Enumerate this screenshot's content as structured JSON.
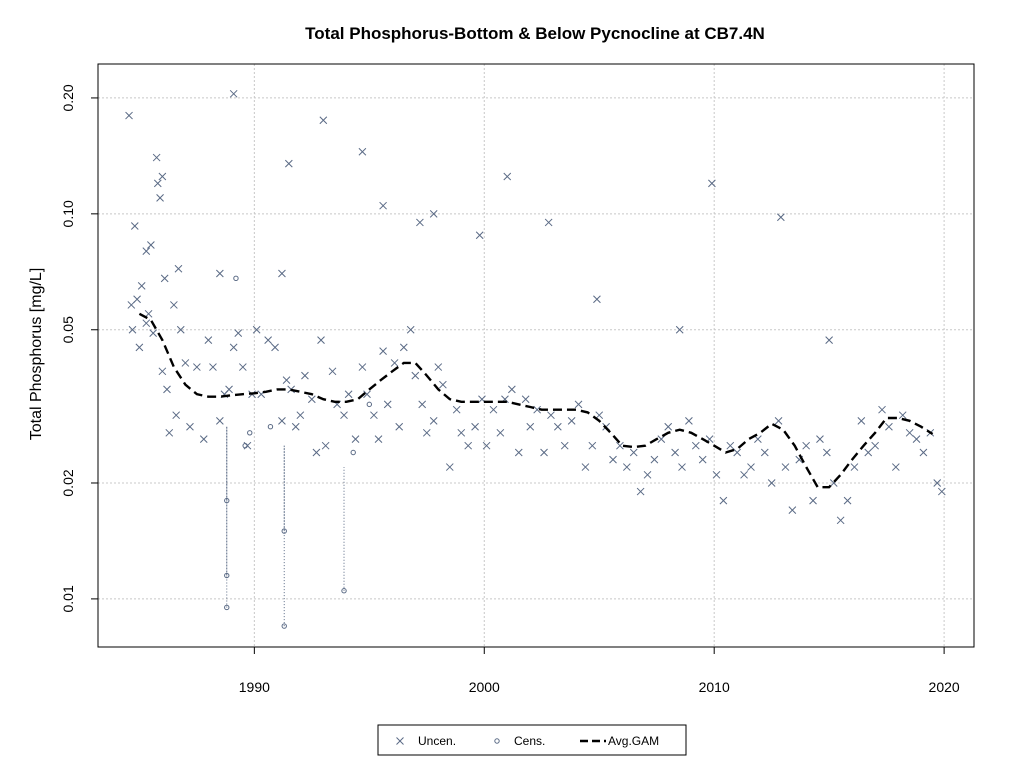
{
  "chart_data": {
    "type": "scatter",
    "title": "Total Phosphorus-Bottom & Below Pycnocline at CB7.4N",
    "xlabel": "",
    "ylabel": "Total Phosphorus [mg/L]",
    "yscale": "log",
    "xlim": [
      1983.2,
      2021.3
    ],
    "ylim": [
      0.0075,
      0.245
    ],
    "xticks": [
      1990,
      2000,
      2010,
      2020
    ],
    "xtick_labels": [
      "1990",
      "2000",
      "2010",
      "2020"
    ],
    "yticks": [
      0.01,
      0.02,
      0.05,
      0.1,
      0.2
    ],
    "ytick_labels": [
      "0.01",
      "0.02",
      "0.05",
      "0.10",
      "0.20"
    ],
    "grid": true,
    "legend": {
      "position": "bottom-center",
      "entries": [
        "Uncen.",
        "Cens.",
        "Avg.GAM"
      ]
    },
    "colors": {
      "points": "#5a6a85",
      "gam": "#000000",
      "grid": "#c8c8c8"
    },
    "series": [
      {
        "name": "Uncen.",
        "marker": "x",
        "x": [
          1984.55,
          1984.65,
          1984.7,
          1984.8,
          1984.9,
          1985.0,
          1985.1,
          1985.3,
          1985.4,
          1985.5,
          1985.6,
          1985.75,
          1985.8,
          1985.9,
          1986.0,
          1986.1,
          1986.2,
          1986.3,
          1986.5,
          1986.6,
          1986.8,
          1987.0,
          1987.2,
          1987.5,
          1987.8,
          1988.0,
          1988.2,
          1988.5,
          1988.7,
          1988.9,
          1989.1,
          1989.3,
          1989.5,
          1989.7,
          1989.9,
          1990.1,
          1990.3,
          1990.6,
          1990.9,
          1991.2,
          1991.4,
          1991.6,
          1991.8,
          1992.0,
          1992.2,
          1992.5,
          1992.7,
          1992.9,
          1993.1,
          1993.4,
          1993.6,
          1993.9,
          1994.1,
          1994.4,
          1994.7,
          1994.9,
          1995.2,
          1995.4,
          1995.6,
          1995.8,
          1996.1,
          1996.3,
          1996.5,
          1996.8,
          1997.0,
          1997.3,
          1997.5,
          1997.8,
          1998.0,
          1998.2,
          1998.5,
          1998.8,
          1999.0,
          1999.3,
          1999.6,
          1999.9,
          2000.1,
          2000.4,
          2000.7,
          2000.9,
          2001.2,
          2001.5,
          2001.8,
          2002.0,
          2002.3,
          2002.6,
          2002.9,
          2003.2,
          2003.5,
          2003.8,
          2004.1,
          2004.4,
          2004.7,
          2005.0,
          2005.3,
          2005.6,
          2005.9,
          2006.2,
          2006.5,
          2006.8,
          2007.1,
          2007.4,
          2007.7,
          2008.0,
          2008.3,
          2008.6,
          2008.9,
          2009.2,
          2009.5,
          2009.8,
          2010.1,
          2010.4,
          2010.7,
          2011.0,
          2011.3,
          2011.6,
          2011.9,
          2012.2,
          2012.5,
          2012.8,
          2013.1,
          2013.4,
          2013.7,
          2014.0,
          2014.3,
          2014.6,
          2014.9,
          2015.2,
          2015.5,
          2015.8,
          2016.1,
          2016.4,
          2016.7,
          2017.0,
          2017.3,
          2017.6,
          2017.9,
          2018.2,
          2018.5,
          2018.8,
          2019.1,
          2019.4,
          2019.7,
          2019.9,
          1985.3,
          1986.0,
          1986.7,
          1989.1,
          1991.5,
          1993.0,
          1994.7,
          1995.6,
          1997.8,
          1999.8,
          2001.0,
          2002.8,
          2009.9,
          2012.9,
          1988.5,
          1991.2,
          1997.2,
          2004.9,
          2008.5,
          2015.0
        ],
        "y": [
          0.18,
          0.058,
          0.05,
          0.093,
          0.06,
          0.045,
          0.065,
          0.08,
          0.055,
          0.083,
          0.049,
          0.14,
          0.12,
          0.11,
          0.039,
          0.068,
          0.035,
          0.027,
          0.058,
          0.03,
          0.05,
          0.041,
          0.028,
          0.04,
          0.026,
          0.047,
          0.04,
          0.029,
          0.034,
          0.035,
          0.045,
          0.049,
          0.04,
          0.025,
          0.034,
          0.05,
          0.034,
          0.047,
          0.045,
          0.029,
          0.037,
          0.035,
          0.028,
          0.03,
          0.038,
          0.033,
          0.024,
          0.047,
          0.025,
          0.039,
          0.032,
          0.03,
          0.034,
          0.026,
          0.04,
          0.034,
          0.03,
          0.026,
          0.044,
          0.032,
          0.041,
          0.028,
          0.045,
          0.05,
          0.038,
          0.032,
          0.027,
          0.029,
          0.04,
          0.036,
          0.022,
          0.031,
          0.027,
          0.025,
          0.028,
          0.033,
          0.025,
          0.031,
          0.027,
          0.033,
          0.035,
          0.024,
          0.033,
          0.028,
          0.031,
          0.024,
          0.03,
          0.028,
          0.025,
          0.029,
          0.032,
          0.022,
          0.025,
          0.03,
          0.028,
          0.023,
          0.025,
          0.022,
          0.024,
          0.019,
          0.021,
          0.023,
          0.026,
          0.028,
          0.024,
          0.022,
          0.029,
          0.025,
          0.023,
          0.026,
          0.021,
          0.018,
          0.025,
          0.024,
          0.021,
          0.022,
          0.026,
          0.024,
          0.02,
          0.029,
          0.022,
          0.017,
          0.023,
          0.025,
          0.018,
          0.026,
          0.024,
          0.02,
          0.016,
          0.018,
          0.022,
          0.029,
          0.024,
          0.025,
          0.031,
          0.028,
          0.022,
          0.03,
          0.027,
          0.026,
          0.024,
          0.027,
          0.02,
          0.019,
          0.052,
          0.125,
          0.072,
          0.205,
          0.135,
          0.175,
          0.145,
          0.105,
          0.1,
          0.088,
          0.125,
          0.095,
          0.12,
          0.098,
          0.07,
          0.07,
          0.095,
          0.06,
          0.05,
          0.047
        ]
      },
      {
        "name": "Cens.",
        "marker": "o",
        "x": [
          1988.8,
          1988.8,
          1988.8,
          1989.2,
          1989.6,
          1991.3,
          1991.3,
          1993.9,
          1994.3,
          1995.0,
          1989.8,
          1990.7
        ],
        "y": [
          0.0095,
          0.0115,
          0.018,
          0.068,
          0.025,
          0.0085,
          0.015,
          0.0105,
          0.024,
          0.032,
          0.027,
          0.028
        ],
        "upper": [
          0.028,
          0.028,
          0.028,
          0.068,
          0.025,
          0.025,
          0.025,
          0.022,
          0.024,
          0.032,
          0.027,
          0.028
        ]
      },
      {
        "name": "Avg.GAM",
        "line": "dashed",
        "x": [
          1985.0,
          1985.5,
          1986.0,
          1986.5,
          1987.0,
          1987.5,
          1988.0,
          1988.5,
          1989.0,
          1989.5,
          1990.0,
          1990.5,
          1991.0,
          1991.5,
          1992.0,
          1992.5,
          1993.0,
          1993.5,
          1994.0,
          1994.5,
          1995.0,
          1995.5,
          1996.0,
          1996.5,
          1997.0,
          1997.5,
          1998.0,
          1998.5,
          1999.0,
          1999.5,
          2000.0,
          2000.5,
          2001.0,
          2001.5,
          2002.0,
          2002.5,
          2003.0,
          2003.5,
          2004.0,
          2004.5,
          2005.0,
          2005.5,
          2006.0,
          2006.5,
          2007.0,
          2007.5,
          2008.0,
          2008.5,
          2009.0,
          2009.5,
          2010.0,
          2010.5,
          2011.0,
          2011.5,
          2012.0,
          2012.5,
          2013.0,
          2013.5,
          2014.0,
          2014.5,
          2015.0,
          2015.5,
          2016.0,
          2016.5,
          2017.0,
          2017.5,
          2018.0,
          2018.5,
          2019.0,
          2019.5
        ],
        "y": [
          0.055,
          0.053,
          0.047,
          0.04,
          0.036,
          0.034,
          0.0335,
          0.0335,
          0.0338,
          0.034,
          0.0342,
          0.0345,
          0.035,
          0.035,
          0.0345,
          0.034,
          0.033,
          0.0325,
          0.0325,
          0.033,
          0.035,
          0.037,
          0.039,
          0.041,
          0.041,
          0.038,
          0.035,
          0.033,
          0.0325,
          0.0325,
          0.0325,
          0.0325,
          0.0325,
          0.032,
          0.0315,
          0.031,
          0.031,
          0.031,
          0.031,
          0.0305,
          0.029,
          0.027,
          0.025,
          0.0248,
          0.025,
          0.026,
          0.027,
          0.0275,
          0.027,
          0.026,
          0.025,
          0.024,
          0.0245,
          0.026,
          0.027,
          0.0285,
          0.0275,
          0.025,
          0.022,
          0.0195,
          0.0195,
          0.021,
          0.023,
          0.025,
          0.027,
          0.0295,
          0.0295,
          0.029,
          0.028,
          0.0268
        ]
      }
    ]
  }
}
